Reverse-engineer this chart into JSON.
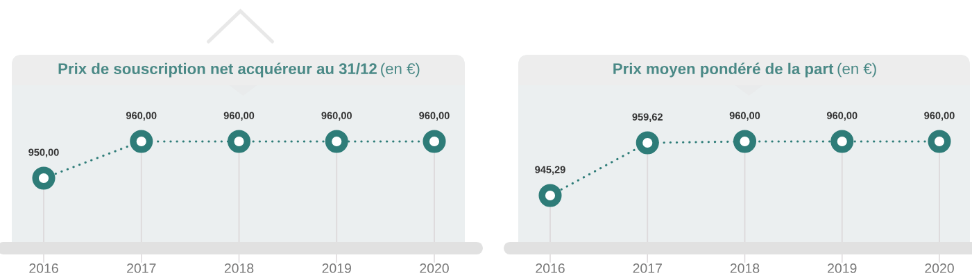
{
  "chart_data": [
    {
      "type": "line",
      "title": "Prix de souscription net acquéreur au 31/12",
      "subtitle": "(en €)",
      "categories": [
        "2016",
        "2017",
        "2018",
        "2019",
        "2020"
      ],
      "values": [
        950,
        960,
        960,
        960,
        960
      ],
      "value_labels": [
        "950,00",
        "960,00",
        "960,00",
        "960,00",
        "960,00"
      ],
      "color": "#2e7c78",
      "marker": "circle",
      "line_style": "dotted",
      "grid": "x",
      "tick_labels": "x"
    },
    {
      "type": "line",
      "title": "Prix moyen pondéré de la part",
      "subtitle": "(en €)",
      "categories": [
        "2016",
        "2017",
        "2018",
        "2019",
        "2020"
      ],
      "values": [
        945.29,
        959.62,
        960,
        960,
        960
      ],
      "value_labels": [
        "945,29",
        "959,62",
        "960,00",
        "960,00",
        "960,00"
      ],
      "color": "#2e7c78",
      "marker": "circle",
      "line_style": "dotted",
      "grid": "x",
      "tick_labels": "x"
    }
  ]
}
